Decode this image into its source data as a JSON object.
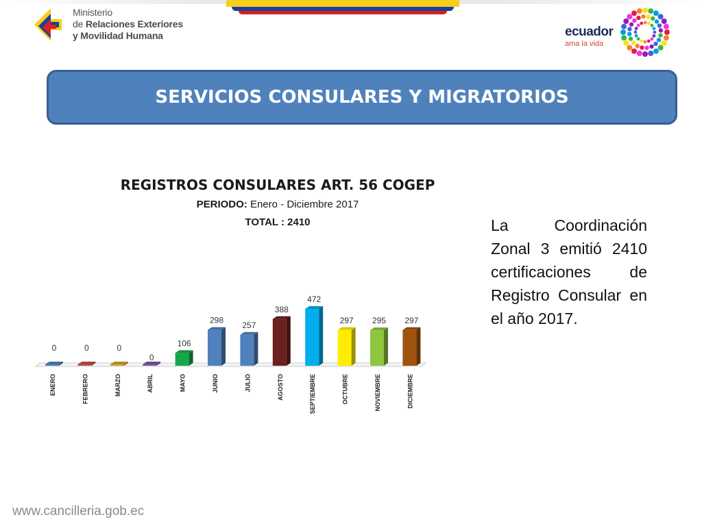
{
  "header": {
    "ministry_line1": "Ministerio",
    "ministry_line2_prefix": "de ",
    "ministry_line2_bold": "Relaciones Exteriores",
    "ministry_line3": "y Movilidad Humana",
    "brand_word": "ecuador",
    "brand_tagline": "ama la vida"
  },
  "banner": {
    "title": "SERVICIOS CONSULARES Y MIGRATORIOS"
  },
  "chart_data": {
    "type": "bar",
    "title": "REGISTROS CONSULARES ART. 56 COGEP",
    "period_label": "PERIODO:",
    "period_value": " Enero - Diciembre 2017",
    "total_label": "TOTAL : 2410",
    "categories": [
      "ENERO",
      "FEBRERO",
      "MARZO",
      "ABRIL",
      "MAYO",
      "JUNIO",
      "JULIO",
      "AGOSTO",
      "SEPTIEMBRE",
      "OCTUBRE",
      "NOVIEMBRE",
      "DICIEMBRE"
    ],
    "values": [
      0,
      0,
      0,
      0,
      106,
      298,
      257,
      388,
      472,
      297,
      295,
      297
    ],
    "colors": [
      "#4f81bd",
      "#c0504d",
      "#d4a32a",
      "#7b58a6",
      "#14a84a",
      "#4f81bd",
      "#4f81bd",
      "#6b1f1f",
      "#00aeef",
      "#ffee00",
      "#8ec63f",
      "#a0520f"
    ],
    "ylim": [
      0,
      472
    ]
  },
  "side_text": "La Coordinación Zonal 3 emitió 2410 certificaciones de Registro Consular en el año 2017.",
  "footer": {
    "url": "www.cancilleria.gob.ec"
  }
}
